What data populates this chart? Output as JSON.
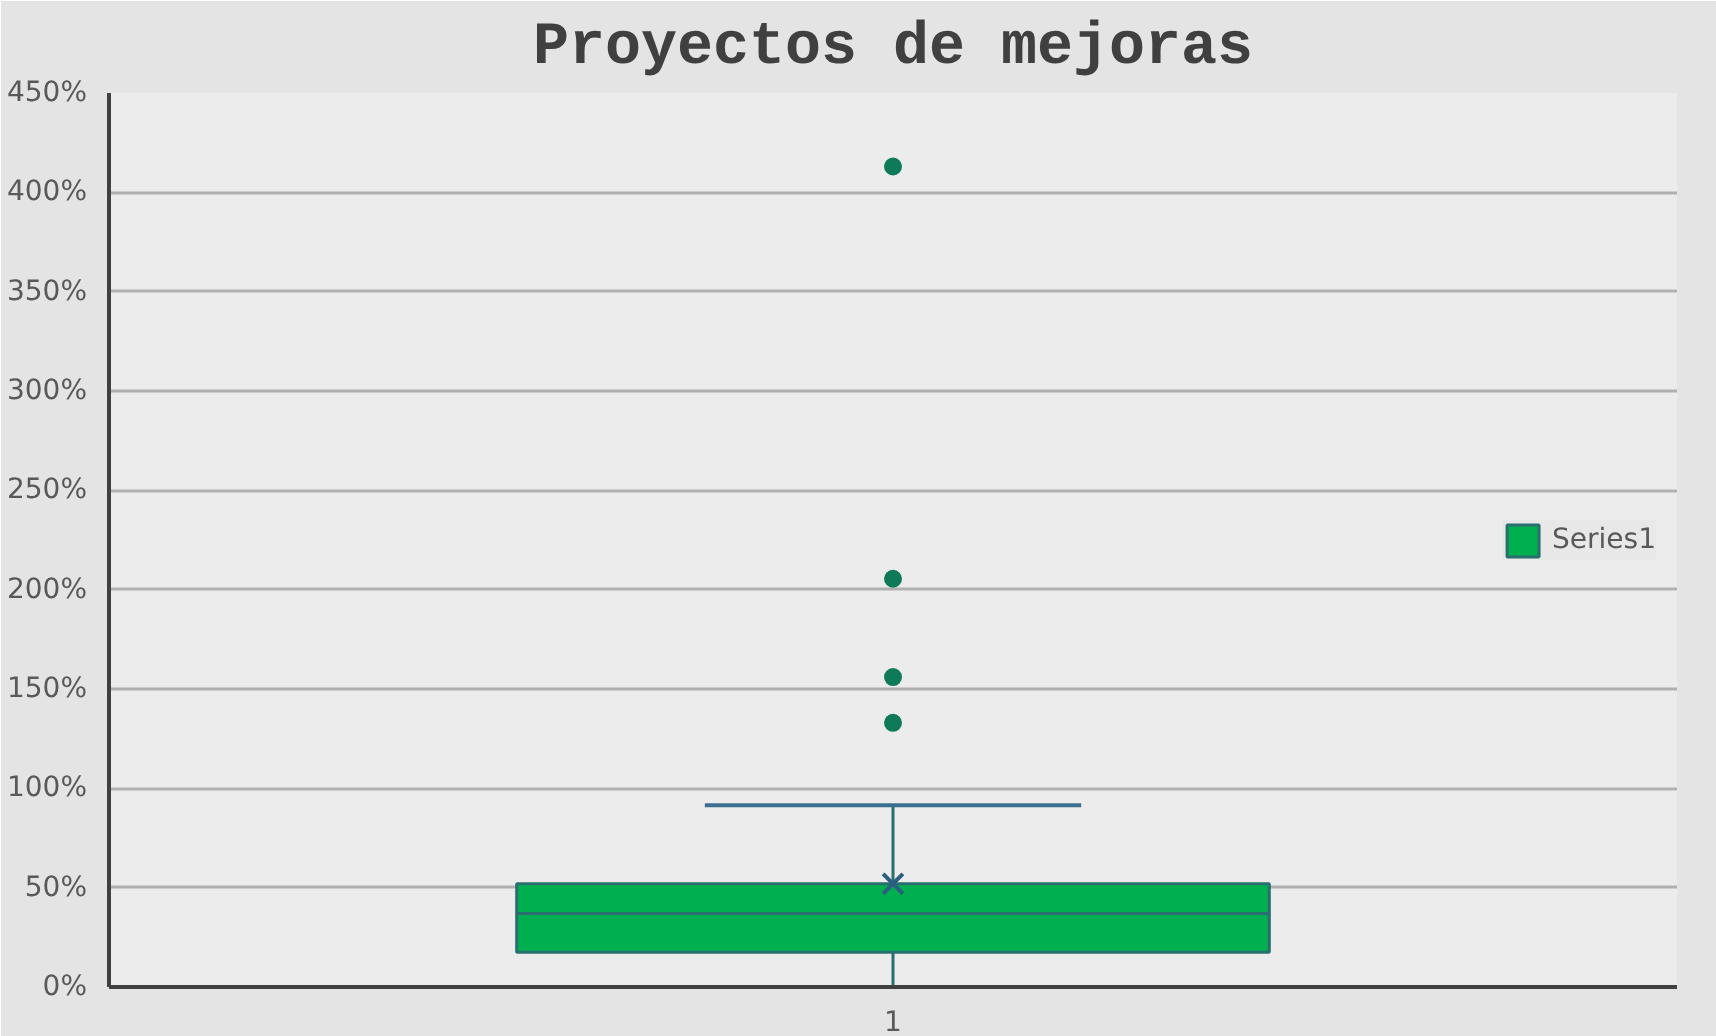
{
  "chart_data": {
    "type": "box",
    "title": "Proyectos de mejoras",
    "categories": [
      "1"
    ],
    "series": [
      {
        "name": "Series1",
        "color": "#00b050",
        "boxes": [
          {
            "low": 0,
            "q1": 17.5,
            "median": 37,
            "q3": 52,
            "high": 91.5,
            "mean": 52,
            "outliers": [
              413,
              205.5,
              156,
              133
            ]
          }
        ]
      }
    ],
    "ylim": [
      0,
      450
    ],
    "yticks": [
      {
        "value": 0,
        "label": "0%"
      },
      {
        "value": 50,
        "label": "50%"
      },
      {
        "value": 100,
        "label": "100%"
      },
      {
        "value": 150,
        "label": "150%"
      },
      {
        "value": 200,
        "label": "200%"
      },
      {
        "value": 250,
        "label": "250%"
      },
      {
        "value": 300,
        "label": "300%"
      },
      {
        "value": 350,
        "label": "350%"
      },
      {
        "value": 400,
        "label": "400%"
      },
      {
        "value": 450,
        "label": "450%"
      }
    ],
    "grid": "y",
    "legend": "right"
  }
}
